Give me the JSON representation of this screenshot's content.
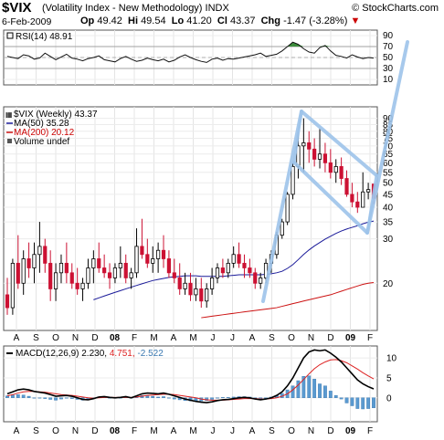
{
  "header": {
    "symbol": "$VIX",
    "name": "(Volatility Index - New Methodology) INDX",
    "brand": "© StockCharts.com",
    "date": "6-Feb-2009",
    "open_label": "Op",
    "open": "49.42",
    "high_label": "Hi",
    "high": "49.54",
    "low_label": "Lo",
    "low": "41.20",
    "close_label": "Cl",
    "close": "43.37",
    "change_label": "Chg",
    "change": "-1.47 (-3.28%)",
    "change_arrow": "▼"
  },
  "colors": {
    "up": "#000000",
    "down": "#cc1133",
    "ma50": "#1a1a99",
    "ma200": "#cc1111",
    "macd_hist": "#5a9ad0",
    "annotation": "#9ec4ea",
    "rsi_fill": "#3a8a3a"
  },
  "x_tick_labels": [
    "A",
    "S",
    "O",
    "N",
    "D",
    "08",
    "F",
    "M",
    "A",
    "M",
    "J",
    "J",
    "A",
    "S",
    "O",
    "N",
    "D",
    "09",
    "F"
  ],
  "chart_data": [
    {
      "type": "line",
      "panel": "RSI",
      "legend": "RSI(14) 48.91",
      "y_ticks": [
        90,
        70,
        50,
        30,
        10
      ],
      "ylim": [
        0,
        100
      ],
      "reference_lines": [
        70,
        30
      ],
      "values": [
        52,
        50,
        48,
        55,
        53,
        47,
        49,
        58,
        52,
        46,
        51,
        56,
        49,
        47,
        44,
        48,
        50,
        53,
        46,
        44,
        42,
        48,
        52,
        47,
        43,
        45,
        49,
        46,
        44,
        47,
        42,
        45,
        51,
        55,
        50,
        46,
        43,
        41,
        47,
        49,
        45,
        48,
        47,
        49,
        51,
        53,
        55,
        58,
        52,
        54,
        56,
        62,
        70,
        78,
        74,
        66,
        60,
        58,
        68,
        72,
        62,
        54,
        52,
        49,
        55,
        51,
        48,
        50,
        49
      ]
    },
    {
      "type": "candlestick",
      "panel": "Price",
      "legend": [
        "$VIX (Weekly) 43.37",
        "MA(50) 35.28",
        "MA(200) 20.12",
        "Volume undef"
      ],
      "y_scale": "log",
      "y_ticks": [
        90,
        85,
        80,
        75,
        70,
        65,
        60,
        55,
        50,
        45,
        40,
        35,
        30,
        20
      ],
      "ylim": [
        13,
        100
      ],
      "candles": [
        {
          "o": 18,
          "h": 21,
          "l": 15,
          "c": 16
        },
        {
          "o": 16,
          "h": 25,
          "l": 15,
          "c": 24
        },
        {
          "o": 24,
          "h": 31,
          "l": 19,
          "c": 20
        },
        {
          "o": 20,
          "h": 27,
          "l": 18,
          "c": 25
        },
        {
          "o": 25,
          "h": 29,
          "l": 21,
          "c": 23
        },
        {
          "o": 23,
          "h": 29,
          "l": 20,
          "c": 26
        },
        {
          "o": 26,
          "h": 35,
          "l": 22,
          "c": 28
        },
        {
          "o": 28,
          "h": 30,
          "l": 22,
          "c": 24
        },
        {
          "o": 24,
          "h": 27,
          "l": 17,
          "c": 19
        },
        {
          "o": 19,
          "h": 24,
          "l": 17,
          "c": 22
        },
        {
          "o": 22,
          "h": 26,
          "l": 20,
          "c": 24
        },
        {
          "o": 24,
          "h": 29,
          "l": 20,
          "c": 22
        },
        {
          "o": 22,
          "h": 24,
          "l": 19,
          "c": 20
        },
        {
          "o": 20,
          "h": 23,
          "l": 18,
          "c": 19
        },
        {
          "o": 19,
          "h": 21,
          "l": 17,
          "c": 20
        },
        {
          "o": 20,
          "h": 25,
          "l": 19,
          "c": 23
        },
        {
          "o": 23,
          "h": 27,
          "l": 20,
          "c": 25
        },
        {
          "o": 25,
          "h": 29,
          "l": 22,
          "c": 23
        },
        {
          "o": 23,
          "h": 26,
          "l": 21,
          "c": 22
        },
        {
          "o": 22,
          "h": 24,
          "l": 19,
          "c": 21
        },
        {
          "o": 21,
          "h": 24,
          "l": 20,
          "c": 23
        },
        {
          "o": 23,
          "h": 28,
          "l": 21,
          "c": 24
        },
        {
          "o": 24,
          "h": 26,
          "l": 20,
          "c": 21
        },
        {
          "o": 21,
          "h": 23,
          "l": 19,
          "c": 22
        },
        {
          "o": 22,
          "h": 33,
          "l": 21,
          "c": 28
        },
        {
          "o": 28,
          "h": 36,
          "l": 25,
          "c": 26
        },
        {
          "o": 26,
          "h": 30,
          "l": 23,
          "c": 24
        },
        {
          "o": 24,
          "h": 28,
          "l": 22,
          "c": 25
        },
        {
          "o": 25,
          "h": 29,
          "l": 22,
          "c": 27
        },
        {
          "o": 27,
          "h": 31,
          "l": 23,
          "c": 25
        },
        {
          "o": 25,
          "h": 27,
          "l": 21,
          "c": 22
        },
        {
          "o": 22,
          "h": 25,
          "l": 20,
          "c": 21
        },
        {
          "o": 21,
          "h": 24,
          "l": 18,
          "c": 19
        },
        {
          "o": 19,
          "h": 22,
          "l": 18,
          "c": 20
        },
        {
          "o": 20,
          "h": 22,
          "l": 17,
          "c": 18
        },
        {
          "o": 18,
          "h": 21,
          "l": 17,
          "c": 19
        },
        {
          "o": 19,
          "h": 21,
          "l": 16,
          "c": 17
        },
        {
          "o": 17,
          "h": 20,
          "l": 16,
          "c": 19
        },
        {
          "o": 19,
          "h": 23,
          "l": 18,
          "c": 21
        },
        {
          "o": 21,
          "h": 24,
          "l": 20,
          "c": 23
        },
        {
          "o": 23,
          "h": 25,
          "l": 21,
          "c": 22
        },
        {
          "o": 22,
          "h": 25,
          "l": 21,
          "c": 24
        },
        {
          "o": 24,
          "h": 28,
          "l": 23,
          "c": 26
        },
        {
          "o": 26,
          "h": 29,
          "l": 23,
          "c": 24
        },
        {
          "o": 24,
          "h": 26,
          "l": 21,
          "c": 23
        },
        {
          "o": 23,
          "h": 25,
          "l": 21,
          "c": 22
        },
        {
          "o": 22,
          "h": 23,
          "l": 19,
          "c": 20
        },
        {
          "o": 20,
          "h": 22,
          "l": 19,
          "c": 21
        },
        {
          "o": 21,
          "h": 25,
          "l": 20,
          "c": 24
        },
        {
          "o": 24,
          "h": 27,
          "l": 22,
          "c": 26
        },
        {
          "o": 26,
          "h": 32,
          "l": 25,
          "c": 31
        },
        {
          "o": 31,
          "h": 36,
          "l": 30,
          "c": 35
        },
        {
          "o": 35,
          "h": 46,
          "l": 34,
          "c": 45
        },
        {
          "o": 45,
          "h": 60,
          "l": 43,
          "c": 58
        },
        {
          "o": 58,
          "h": 80,
          "l": 52,
          "c": 70
        },
        {
          "o": 70,
          "h": 90,
          "l": 55,
          "c": 72
        },
        {
          "o": 72,
          "h": 80,
          "l": 60,
          "c": 68
        },
        {
          "o": 68,
          "h": 75,
          "l": 58,
          "c": 62
        },
        {
          "o": 62,
          "h": 82,
          "l": 57,
          "c": 65
        },
        {
          "o": 65,
          "h": 72,
          "l": 55,
          "c": 60
        },
        {
          "o": 60,
          "h": 68,
          "l": 52,
          "c": 55
        },
        {
          "o": 55,
          "h": 62,
          "l": 50,
          "c": 58
        },
        {
          "o": 58,
          "h": 63,
          "l": 49,
          "c": 52
        },
        {
          "o": 52,
          "h": 56,
          "l": 44,
          "c": 45
        },
        {
          "o": 45,
          "h": 50,
          "l": 40,
          "c": 42
        },
        {
          "o": 42,
          "h": 46,
          "l": 38,
          "c": 40
        },
        {
          "o": 40,
          "h": 55,
          "l": 40,
          "c": 46
        },
        {
          "o": 46,
          "h": 50,
          "l": 43,
          "c": 47
        },
        {
          "o": 49.42,
          "h": 49.54,
          "l": 41.2,
          "c": 43.37
        }
      ],
      "ma50": [
        null,
        null,
        null,
        null,
        null,
        null,
        null,
        null,
        null,
        null,
        null,
        null,
        null,
        null,
        null,
        null,
        17.2,
        17.5,
        17.8,
        18.1,
        18.4,
        18.7,
        19.0,
        19.3,
        19.6,
        19.9,
        20.2,
        20.5,
        20.7,
        20.9,
        21.1,
        21.2,
        21.3,
        21.4,
        21.4,
        21.4,
        21.3,
        21.3,
        21.3,
        21.3,
        21.3,
        21.4,
        21.5,
        21.6,
        21.6,
        21.6,
        21.6,
        21.6,
        21.7,
        21.8,
        22.0,
        22.3,
        22.9,
        23.7,
        24.8,
        26.0,
        27.1,
        28.1,
        29.0,
        29.9,
        30.7,
        31.5,
        32.2,
        32.8,
        33.3,
        33.8,
        34.4,
        34.9,
        35.28
      ],
      "ma200": [
        null,
        null,
        null,
        null,
        null,
        null,
        null,
        null,
        null,
        null,
        null,
        null,
        null,
        null,
        null,
        null,
        null,
        null,
        null,
        null,
        null,
        null,
        null,
        null,
        null,
        null,
        null,
        null,
        null,
        null,
        null,
        null,
        null,
        null,
        null,
        null,
        14.6,
        14.7,
        14.8,
        14.9,
        15.0,
        15.1,
        15.2,
        15.3,
        15.4,
        15.5,
        15.6,
        15.7,
        15.8,
        15.9,
        16.0,
        16.2,
        16.4,
        16.6,
        16.8,
        17.0,
        17.2,
        17.4,
        17.6,
        17.8,
        18.0,
        18.3,
        18.6,
        18.9,
        19.2,
        19.5,
        19.8,
        20.0,
        20.12
      ]
    },
    {
      "type": "line",
      "panel": "MACD",
      "legend": {
        "label": "MACD(12,26,9)",
        "macd": "2.230",
        "signal": "4.751",
        "hist": "-2.522"
      },
      "y_ticks": [
        10,
        5,
        0
      ],
      "ylim": [
        -6,
        13
      ],
      "macd": [
        1.0,
        1.5,
        2.0,
        2.2,
        2.0,
        1.6,
        1.4,
        1.2,
        0.8,
        0.4,
        0.5,
        0.6,
        0.4,
        0.0,
        -0.4,
        -0.5,
        -0.2,
        0.2,
        0.3,
        0.1,
        0.0,
        0.1,
        0.3,
        0.0,
        0.5,
        1.0,
        1.2,
        1.1,
        1.0,
        1.2,
        0.9,
        0.5,
        0.1,
        -0.3,
        -0.6,
        -0.9,
        -1.1,
        -1.2,
        -1.0,
        -0.7,
        -0.5,
        -0.4,
        -0.2,
        0.0,
        0.1,
        0.0,
        -0.3,
        -0.5,
        -0.3,
        0.0,
        0.6,
        1.5,
        3.0,
        5.0,
        7.5,
        10.0,
        11.5,
        12.0,
        11.8,
        12.0,
        11.2,
        10.2,
        9.0,
        7.5,
        6.0,
        4.5,
        3.5,
        2.8,
        2.23
      ],
      "signal": [
        0.5,
        0.8,
        1.2,
        1.5,
        1.6,
        1.6,
        1.5,
        1.4,
        1.2,
        1.0,
        0.8,
        0.7,
        0.6,
        0.4,
        0.2,
        0.0,
        -0.1,
        0.0,
        0.1,
        0.1,
        0.1,
        0.1,
        0.1,
        0.1,
        0.2,
        0.4,
        0.6,
        0.7,
        0.8,
        0.9,
        0.9,
        0.8,
        0.6,
        0.4,
        0.2,
        0.0,
        -0.3,
        -0.5,
        -0.6,
        -0.6,
        -0.6,
        -0.5,
        -0.4,
        -0.3,
        -0.2,
        -0.2,
        -0.2,
        -0.3,
        -0.3,
        -0.2,
        0.0,
        0.4,
        1.0,
        2.0,
        3.2,
        4.6,
        6.0,
        7.3,
        8.3,
        9.0,
        9.5,
        9.6,
        9.3,
        8.8,
        8.0,
        7.2,
        6.3,
        5.5,
        4.751
      ]
    }
  ]
}
